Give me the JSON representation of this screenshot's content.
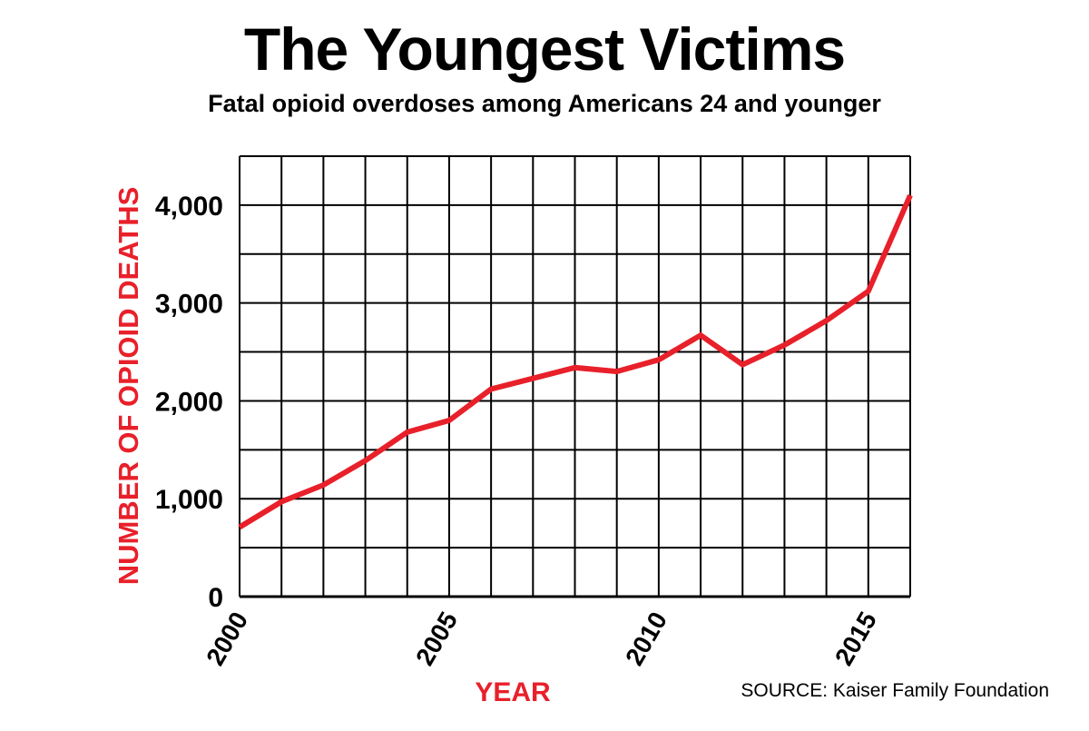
{
  "chart_data": {
    "type": "line",
    "title": "The Youngest Victims",
    "subtitle": "Fatal opioid overdoses among Americans 24 and younger",
    "xlabel": "YEAR",
    "ylabel": "NUMBER OF OPIOID DEATHS",
    "source": "SOURCE: Kaiser Family Foundation",
    "x": [
      2000,
      2001,
      2002,
      2003,
      2004,
      2005,
      2006,
      2007,
      2008,
      2009,
      2010,
      2011,
      2012,
      2013,
      2014,
      2015,
      2016
    ],
    "series": [
      {
        "values": [
          710,
          970,
          1140,
          1390,
          1680,
          1800,
          2120,
          2230,
          2340,
          2300,
          2420,
          2670,
          2370,
          2570,
          2820,
          3120,
          4100
        ]
      }
    ],
    "x_tick_labels": [
      "2000",
      "2005",
      "2010",
      "2015"
    ],
    "x_tick_values": [
      2000,
      2005,
      2010,
      2015
    ],
    "y_tick_labels": [
      "0",
      "1,000",
      "2,000",
      "3,000",
      "4,000"
    ],
    "y_tick_values": [
      0,
      1000,
      2000,
      3000,
      4000
    ],
    "xlim": [
      2000,
      2016
    ],
    "ylim": [
      0,
      4500
    ],
    "grid": true,
    "legend": "none",
    "colors": {
      "line": "#e8202a",
      "axis_label": "#e8202a",
      "grid": "#000000"
    }
  }
}
